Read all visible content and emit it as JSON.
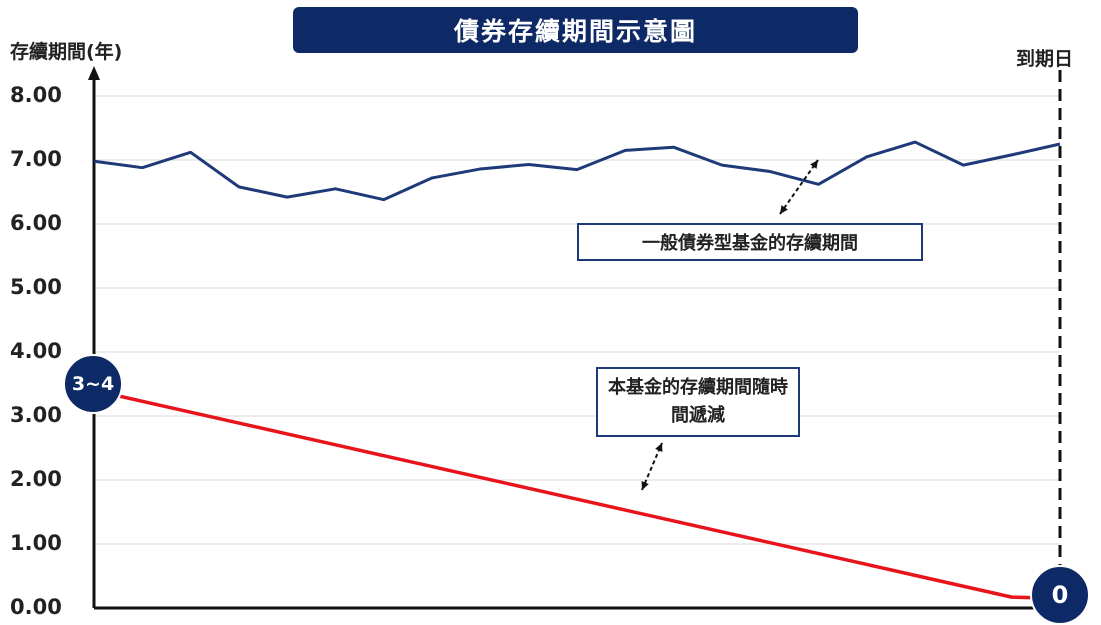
{
  "title": "債券存續期間示意圖",
  "chart_data": {
    "type": "line",
    "ylabel": "存續期間(年)",
    "maturity_label": "到期日",
    "ylim": [
      0,
      8
    ],
    "y_ticks": [
      "0.00",
      "1.00",
      "2.00",
      "3.00",
      "4.00",
      "5.00",
      "6.00",
      "7.00",
      "8.00"
    ],
    "grid": true,
    "x": [
      0,
      0.05,
      0.1,
      0.15,
      0.2,
      0.25,
      0.3,
      0.35,
      0.4,
      0.45,
      0.5,
      0.55,
      0.6,
      0.65,
      0.7,
      0.75,
      0.8,
      0.85,
      0.9,
      0.95,
      1
    ],
    "series": [
      {
        "name": "一般債券型基金的存續期間",
        "color": "#1f3a78",
        "values": [
          6.98,
          6.88,
          7.12,
          6.58,
          6.42,
          6.55,
          6.38,
          6.72,
          6.86,
          6.93,
          6.85,
          7.15,
          7.2,
          6.92,
          6.82,
          6.62,
          7.05,
          7.28,
          6.92,
          7.08,
          7.25
        ]
      },
      {
        "name": "本基金的存續期間隨時間遞減",
        "color": "#e8141b",
        "values": [
          3.4,
          3.23,
          3.06,
          2.89,
          2.72,
          2.55,
          2.38,
          2.21,
          2.04,
          1.87,
          1.7,
          1.53,
          1.36,
          1.19,
          1.02,
          0.85,
          0.68,
          0.51,
          0.34,
          0.17,
          0.15
        ]
      }
    ],
    "annotations": {
      "general_fund": "一般債券型基金的存續期間",
      "this_fund": "本基金的存續期間隨時間遞減",
      "start_marker": "3~4",
      "end_marker": "0"
    }
  }
}
